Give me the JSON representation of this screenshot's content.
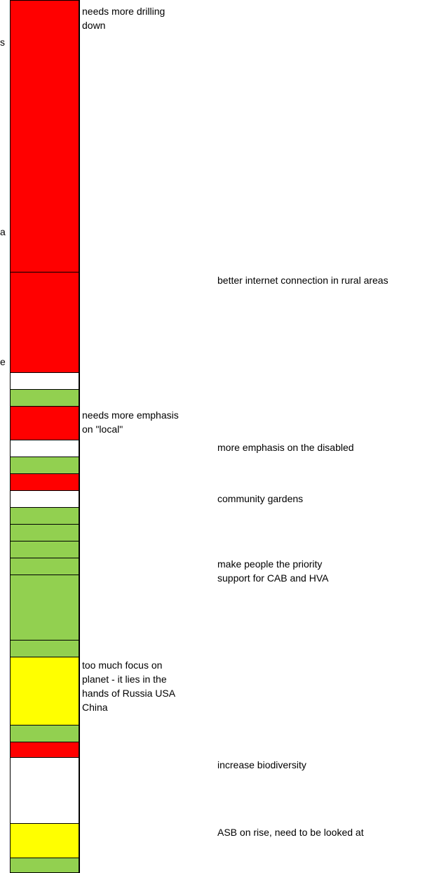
{
  "colors": {
    "red": "#ff0000",
    "green": "#92d050",
    "yellow": "#ffff00",
    "white": "#ffffff",
    "border": "#000000"
  },
  "rating_column": [
    "red",
    "red",
    "white",
    "green",
    "red",
    "white",
    "green",
    "red",
    "white",
    "green",
    "green",
    "green",
    "green",
    "green",
    "green",
    "yellow",
    "green",
    "red",
    "white",
    "yellow",
    "green"
  ],
  "edge_fragments": [
    "s",
    "a",
    "e"
  ],
  "comments": [
    {
      "column": "B",
      "lines": [
        "needs more drilling",
        "down"
      ]
    },
    {
      "column": "C",
      "lines": [
        "better internet connection in rural areas"
      ]
    },
    {
      "column": "B",
      "lines": [
        "needs more emphasis",
        "on \"local\""
      ]
    },
    {
      "column": "C",
      "lines": [
        "more emphasis on the disabled"
      ]
    },
    {
      "column": "C",
      "lines": [
        "community gardens"
      ]
    },
    {
      "column": "C",
      "lines": [
        "make people the priority",
        "support for CAB and HVA"
      ]
    },
    {
      "column": "B",
      "lines": [
        "too much focus on",
        "planet - it lies in the",
        "hands of Russia USA",
        "China"
      ]
    },
    {
      "column": "C",
      "lines": [
        "increase biodiversity"
      ]
    },
    {
      "column": "C",
      "lines": [
        "ASB on rise, need to be looked at"
      ]
    }
  ]
}
